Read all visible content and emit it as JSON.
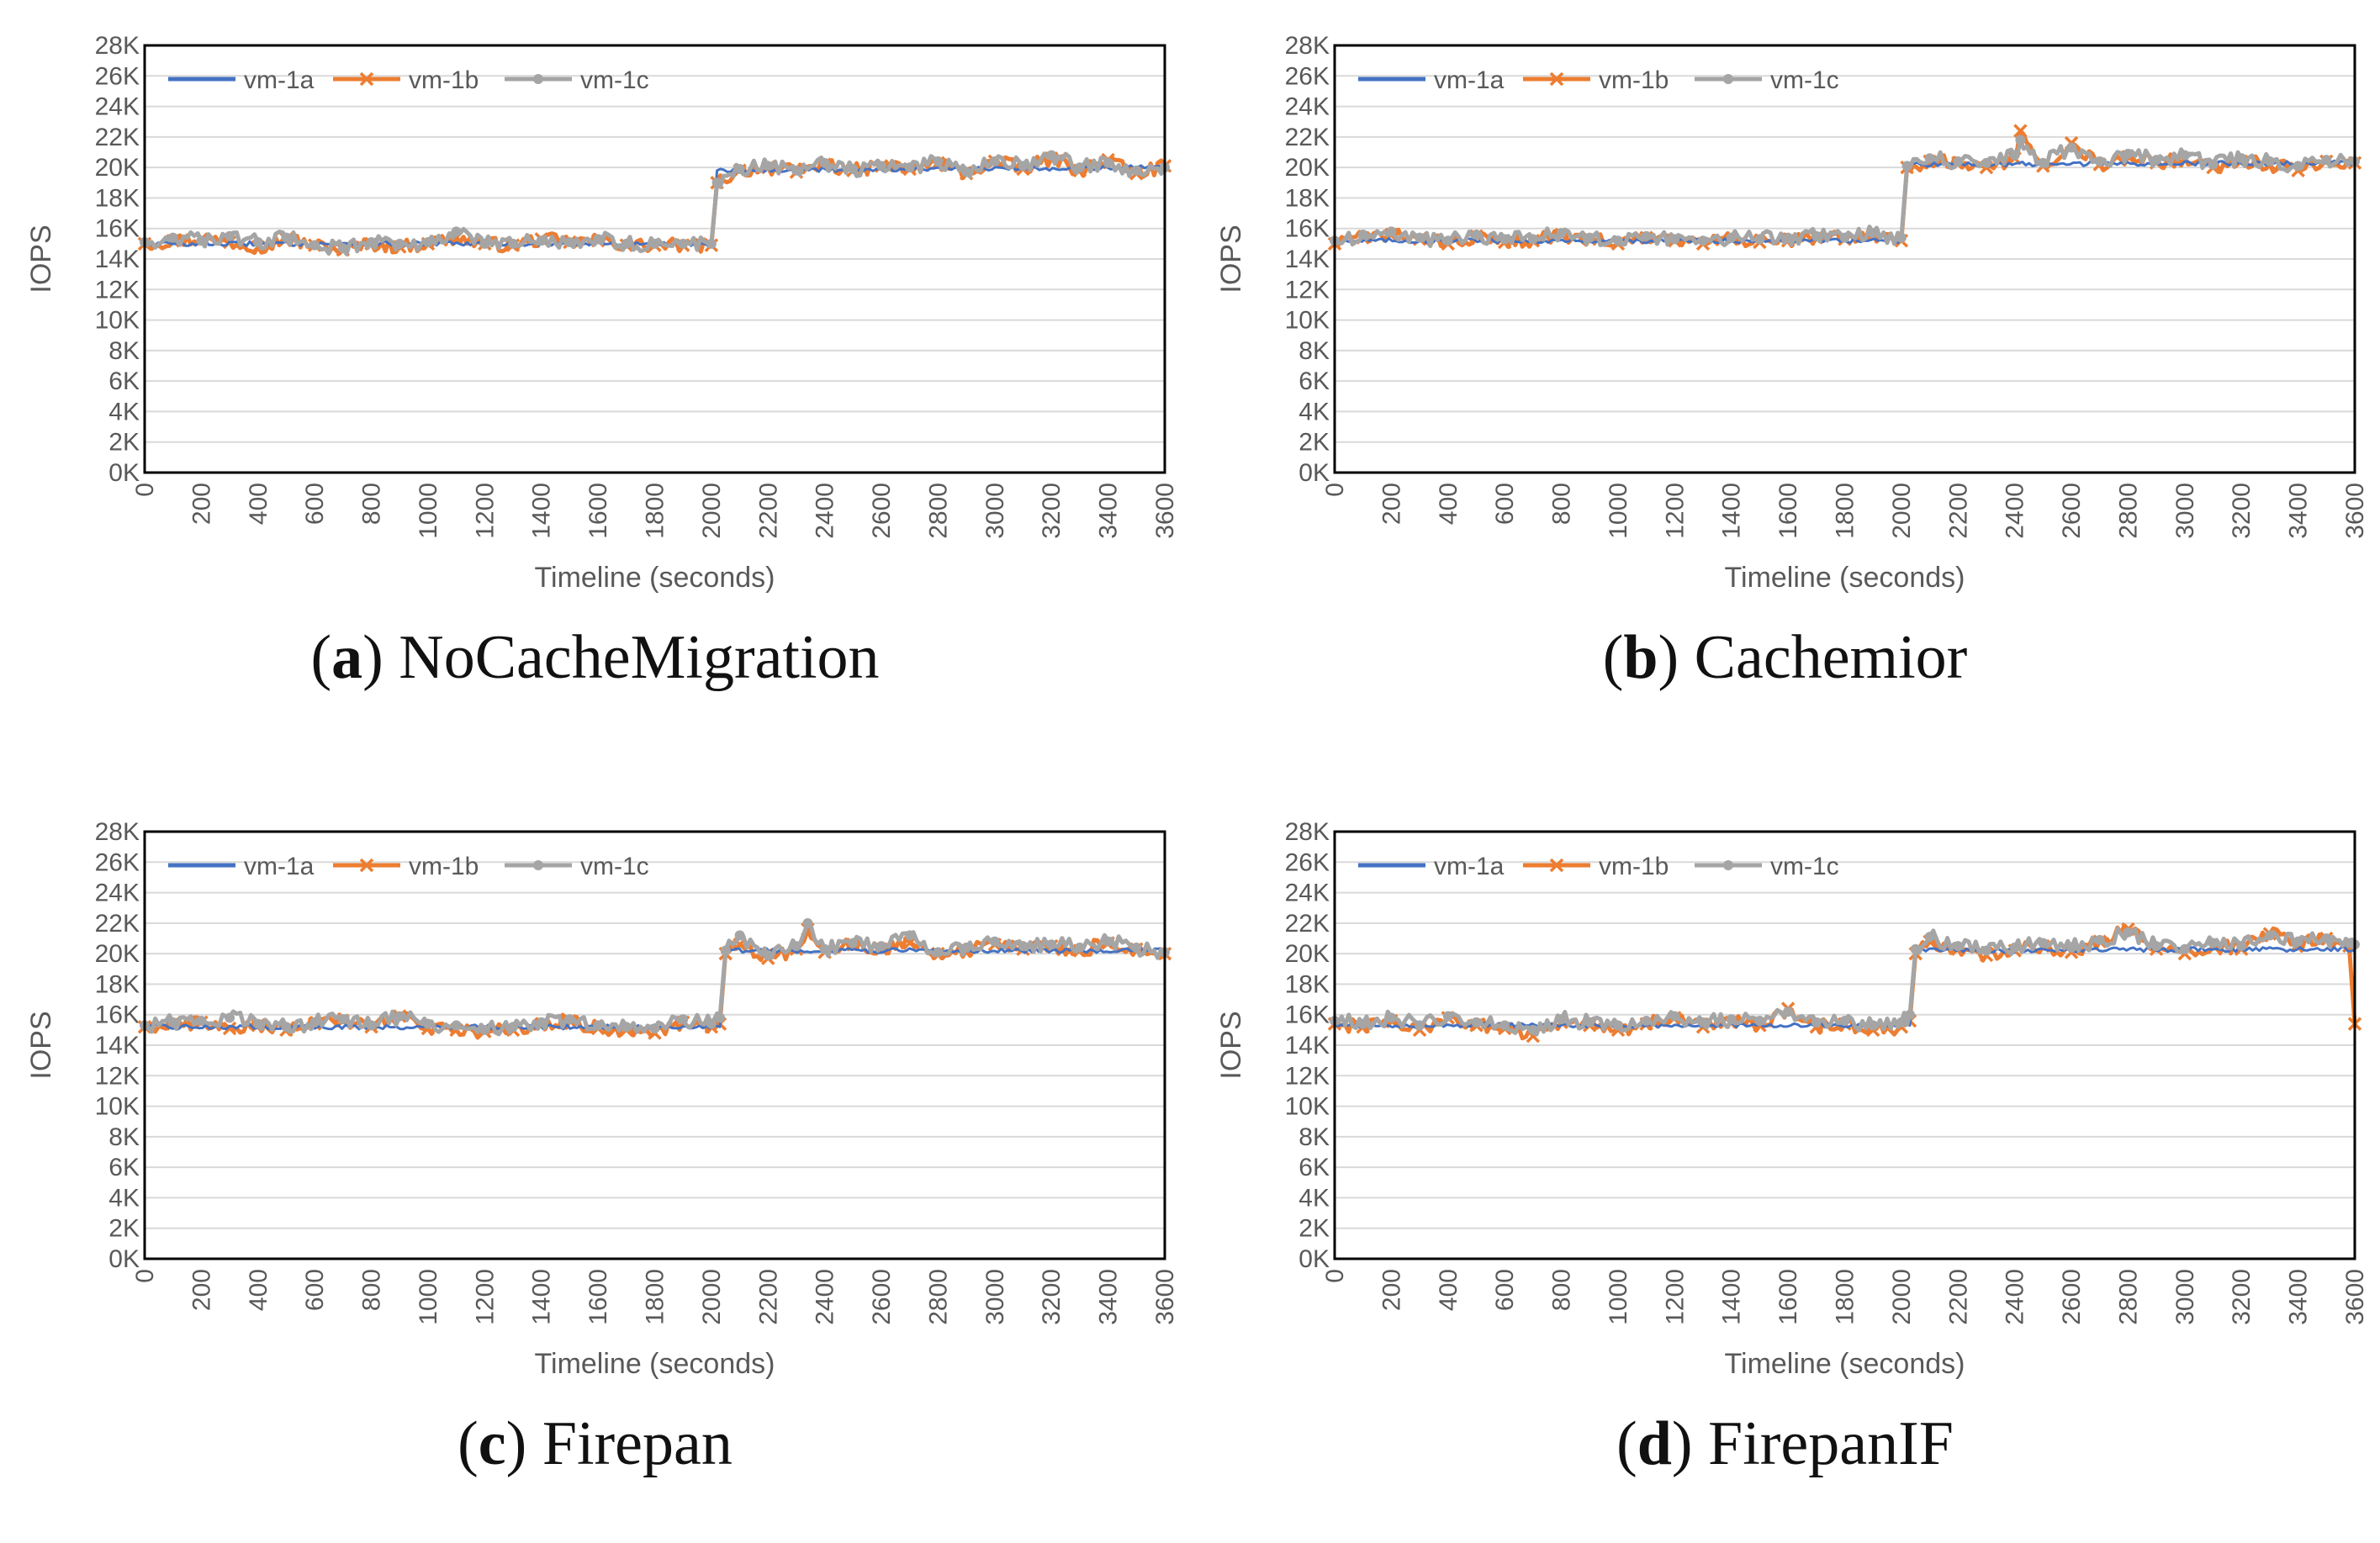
{
  "colors": {
    "vm-1a": "#4472C4",
    "vm-1b": "#ED7D31",
    "vm-1c": "#A5A5A5",
    "grid": "#D9D9D9",
    "frame": "#000000"
  },
  "chart_data": [
    {
      "type": "line",
      "id": "a",
      "caption_letter": "a",
      "caption_text": "NoCacheMigration",
      "ylabel": "IOPS",
      "xlabel": "Timeline (seconds)",
      "xlim": [
        0,
        3600
      ],
      "ylim": [
        0,
        28000
      ],
      "xticks": [
        "0",
        "200",
        "400",
        "600",
        "800",
        "1000",
        "1200",
        "1400",
        "1600",
        "1800",
        "2000",
        "2200",
        "2400",
        "2600",
        "2800",
        "3000",
        "3200",
        "3400",
        "3600"
      ],
      "yticks": [
        "0K",
        "2K",
        "4K",
        "6K",
        "8K",
        "10K",
        "12K",
        "14K",
        "16K",
        "18K",
        "20K",
        "22K",
        "24K",
        "26K",
        "28K"
      ],
      "legend": [
        "vm-1a",
        "vm-1b",
        "vm-1c"
      ],
      "legend_position": "top-left",
      "series": [
        {
          "name": "vm-1a",
          "x": [
            0,
            2000,
            2020,
            3600
          ],
          "values": [
            15000,
            15000,
            19800,
            20000
          ]
        },
        {
          "name": "vm-1b",
          "x": [
            0,
            100,
            200,
            300,
            400,
            500,
            600,
            700,
            800,
            900,
            1000,
            1100,
            1200,
            1300,
            1400,
            1500,
            1600,
            1700,
            1800,
            1900,
            2000,
            2020,
            2100,
            2200,
            2300,
            2400,
            2500,
            2600,
            2700,
            2800,
            2900,
            3000,
            3100,
            3200,
            3300,
            3400,
            3500,
            3600
          ],
          "values": [
            15000,
            15200,
            15300,
            15100,
            14800,
            15300,
            14900,
            14600,
            15000,
            14800,
            15000,
            15400,
            15000,
            14900,
            15300,
            15100,
            15200,
            14900,
            14900,
            14900,
            14900,
            19000,
            19800,
            20000,
            19700,
            20200,
            19800,
            20100,
            19900,
            20300,
            19600,
            20400,
            19900,
            20600,
            19800,
            20500,
            19600,
            20100
          ]
        },
        {
          "name": "vm-1c",
          "x": [
            0,
            100,
            200,
            300,
            400,
            500,
            600,
            700,
            800,
            900,
            1000,
            1100,
            1200,
            1300,
            1400,
            1500,
            1600,
            1700,
            1800,
            1900,
            2000,
            2020,
            2100,
            2200,
            2300,
            2400,
            2500,
            2600,
            2700,
            2800,
            2900,
            3000,
            3100,
            3200,
            3300,
            3400,
            3500,
            3600
          ],
          "values": [
            15100,
            15400,
            15200,
            15500,
            15100,
            15400,
            14900,
            14700,
            15100,
            15000,
            15100,
            15800,
            15000,
            15000,
            15200,
            15100,
            15300,
            15000,
            15000,
            15000,
            15000,
            19000,
            19900,
            20100,
            19800,
            20300,
            19900,
            20100,
            20000,
            20400,
            19700,
            20400,
            20100,
            20800,
            20000,
            20300,
            19800,
            20000
          ]
        }
      ]
    },
    {
      "type": "line",
      "id": "b",
      "caption_letter": "b",
      "caption_text": "Cachemior",
      "ylabel": "IOPS",
      "xlabel": "Timeline (seconds)",
      "xlim": [
        0,
        3600
      ],
      "ylim": [
        0,
        28000
      ],
      "xticks": [
        "0",
        "200",
        "400",
        "600",
        "800",
        "1000",
        "1200",
        "1400",
        "1600",
        "1800",
        "2000",
        "2200",
        "2400",
        "2600",
        "2800",
        "3000",
        "3200",
        "3400",
        "3600"
      ],
      "yticks": [
        "0K",
        "2K",
        "4K",
        "6K",
        "8K",
        "10K",
        "12K",
        "14K",
        "16K",
        "18K",
        "20K",
        "22K",
        "24K",
        "26K",
        "28K"
      ],
      "legend": [
        "vm-1a",
        "vm-1b",
        "vm-1c"
      ],
      "legend_position": "top-left",
      "series": [
        {
          "name": "vm-1a",
          "x": [
            0,
            2000,
            2020,
            3600
          ],
          "values": [
            15200,
            15200,
            20200,
            20300
          ]
        },
        {
          "name": "vm-1b",
          "x": [
            0,
            100,
            200,
            300,
            400,
            500,
            600,
            700,
            800,
            900,
            1000,
            1100,
            1200,
            1300,
            1400,
            1500,
            1600,
            1700,
            1800,
            1900,
            2000,
            2020,
            2100,
            2200,
            2300,
            2400,
            2420,
            2500,
            2600,
            2700,
            2800,
            2900,
            3000,
            3100,
            3200,
            3300,
            3400,
            3500,
            3600
          ],
          "values": [
            15000,
            15400,
            15600,
            15300,
            15000,
            15500,
            15100,
            15200,
            15600,
            15300,
            15000,
            15400,
            15200,
            15000,
            15300,
            15100,
            15200,
            15400,
            15300,
            15600,
            15200,
            20000,
            20400,
            20300,
            20000,
            20600,
            22400,
            20100,
            21600,
            20200,
            20700,
            20300,
            20600,
            20000,
            20400,
            20200,
            19800,
            20400,
            20300
          ]
        },
        {
          "name": "vm-1c",
          "x": [
            0,
            100,
            200,
            300,
            400,
            500,
            600,
            700,
            800,
            900,
            1000,
            1100,
            1200,
            1300,
            1400,
            1500,
            1600,
            1700,
            1800,
            1900,
            2000,
            2020,
            2100,
            2200,
            2300,
            2400,
            2420,
            2500,
            2600,
            2700,
            2800,
            2900,
            3000,
            3100,
            3200,
            3300,
            3400,
            3500,
            3600
          ],
          "values": [
            15200,
            15600,
            15800,
            15400,
            15200,
            15600,
            15300,
            15300,
            15700,
            15400,
            15200,
            15500,
            15300,
            15200,
            15400,
            15300,
            15400,
            15500,
            15400,
            15700,
            15400,
            20100,
            20600,
            20400,
            20300,
            20800,
            21800,
            20300,
            21300,
            20400,
            20900,
            20500,
            20800,
            20200,
            20600,
            20400,
            20100,
            20500,
            20400
          ]
        }
      ]
    },
    {
      "type": "line",
      "id": "c",
      "caption_letter": "c",
      "caption_text": "Firepan",
      "ylabel": "IOPS",
      "xlabel": "Timeline (seconds)",
      "xlim": [
        0,
        3600
      ],
      "ylim": [
        0,
        28000
      ],
      "xticks": [
        "0",
        "200",
        "400",
        "600",
        "800",
        "1000",
        "1200",
        "1400",
        "1600",
        "1800",
        "2000",
        "2200",
        "2400",
        "2600",
        "2800",
        "3000",
        "3200",
        "3400",
        "3600"
      ],
      "yticks": [
        "0K",
        "2K",
        "4K",
        "6K",
        "8K",
        "10K",
        "12K",
        "14K",
        "16K",
        "18K",
        "20K",
        "22K",
        "24K",
        "26K",
        "28K"
      ],
      "legend": [
        "vm-1a",
        "vm-1b",
        "vm-1c"
      ],
      "legend_position": "top-left",
      "series": [
        {
          "name": "vm-1a",
          "x": [
            0,
            2030,
            2050,
            3600
          ],
          "values": [
            15200,
            15200,
            20200,
            20200
          ]
        },
        {
          "name": "vm-1b",
          "x": [
            0,
            100,
            200,
            300,
            400,
            500,
            600,
            700,
            800,
            900,
            1000,
            1100,
            1200,
            1300,
            1400,
            1500,
            1600,
            1700,
            1800,
            1900,
            2000,
            2030,
            2050,
            2100,
            2200,
            2300,
            2340,
            2400,
            2500,
            2600,
            2700,
            2800,
            2900,
            3000,
            3100,
            3200,
            3300,
            3400,
            3500,
            3600
          ],
          "values": [
            15200,
            15400,
            15500,
            15100,
            15300,
            15000,
            15400,
            15600,
            15200,
            15900,
            15100,
            15000,
            14900,
            15000,
            15400,
            15600,
            15100,
            15000,
            14800,
            15500,
            15200,
            15400,
            20000,
            20600,
            19700,
            20300,
            21600,
            20100,
            20600,
            20300,
            20700,
            20000,
            20200,
            20600,
            20300,
            20500,
            20200,
            20700,
            20300,
            20000
          ]
        },
        {
          "name": "vm-1c",
          "x": [
            0,
            100,
            200,
            300,
            400,
            500,
            600,
            700,
            800,
            900,
            1000,
            1100,
            1200,
            1300,
            1400,
            1500,
            1600,
            1700,
            1800,
            1900,
            2000,
            2030,
            2050,
            2100,
            2200,
            2300,
            2340,
            2400,
            2500,
            2600,
            2700,
            2800,
            2900,
            3000,
            3100,
            3200,
            3300,
            3400,
            3500,
            3600
          ],
          "values": [
            15300,
            15500,
            15600,
            15800,
            15400,
            15200,
            15500,
            15700,
            15300,
            15900,
            15400,
            15300,
            15000,
            15200,
            15500,
            15700,
            15300,
            15200,
            15100,
            15700,
            15400,
            15800,
            20200,
            21200,
            19900,
            20500,
            22000,
            20300,
            20700,
            20500,
            21200,
            20100,
            20400,
            20800,
            20500,
            20600,
            20400,
            20800,
            20400,
            20100
          ]
        }
      ]
    },
    {
      "type": "line",
      "id": "d",
      "caption_letter": "d",
      "caption_text": "FirepanIF",
      "ylabel": "IOPS",
      "xlabel": "Timeline (seconds)",
      "xlim": [
        0,
        3600
      ],
      "ylim": [
        0,
        28000
      ],
      "xticks": [
        "0",
        "200",
        "400",
        "600",
        "800",
        "1000",
        "1200",
        "1400",
        "1600",
        "1800",
        "2000",
        "2200",
        "2400",
        "2600",
        "2800",
        "3000",
        "3200",
        "3400",
        "3600"
      ],
      "yticks": [
        "0K",
        "2K",
        "4K",
        "6K",
        "8K",
        "10K",
        "12K",
        "14K",
        "16K",
        "18K",
        "20K",
        "22K",
        "24K",
        "26K",
        "28K"
      ],
      "legend": [
        "vm-1a",
        "vm-1b",
        "vm-1c"
      ],
      "legend_position": "top-left",
      "series": [
        {
          "name": "vm-1a",
          "x": [
            0,
            2030,
            2050,
            3600
          ],
          "values": [
            15300,
            15300,
            20200,
            20300
          ]
        },
        {
          "name": "vm-1b",
          "x": [
            0,
            100,
            200,
            300,
            400,
            500,
            600,
            700,
            800,
            900,
            1000,
            1100,
            1200,
            1300,
            1400,
            1500,
            1600,
            1700,
            1800,
            1900,
            2000,
            2030,
            2050,
            2100,
            2200,
            2300,
            2400,
            2500,
            2600,
            2700,
            2800,
            2900,
            3000,
            3100,
            3200,
            3300,
            3400,
            3500,
            3580,
            3600
          ],
          "values": [
            15400,
            15200,
            15600,
            15000,
            15800,
            15300,
            15100,
            14600,
            15500,
            15300,
            15000,
            15400,
            15800,
            15200,
            15500,
            15300,
            16400,
            15200,
            15400,
            15000,
            15200,
            15600,
            20000,
            20800,
            20300,
            19900,
            20200,
            20500,
            20100,
            20800,
            21600,
            20300,
            20000,
            20500,
            20300,
            21300,
            20600,
            21000,
            20500,
            15400
          ]
        },
        {
          "name": "vm-1c",
          "x": [
            0,
            100,
            200,
            300,
            400,
            500,
            600,
            700,
            800,
            900,
            1000,
            1100,
            1200,
            1300,
            1400,
            1500,
            1600,
            1700,
            1800,
            1900,
            2000,
            2030,
            2050,
            2100,
            2200,
            2300,
            2400,
            2500,
            2600,
            2700,
            2800,
            2900,
            3000,
            3100,
            3200,
            3300,
            3400,
            3500,
            3580,
            3600
          ],
          "values": [
            15600,
            15400,
            15800,
            15300,
            15900,
            15500,
            15300,
            15000,
            15700,
            15500,
            15300,
            15600,
            15900,
            15500,
            15700,
            15600,
            16200,
            15500,
            15600,
            15300,
            15500,
            16000,
            20300,
            21100,
            20500,
            20200,
            20400,
            20700,
            20400,
            20900,
            21400,
            20500,
            20300,
            20700,
            20500,
            21200,
            20800,
            21000,
            20700,
            20600
          ]
        }
      ]
    }
  ]
}
